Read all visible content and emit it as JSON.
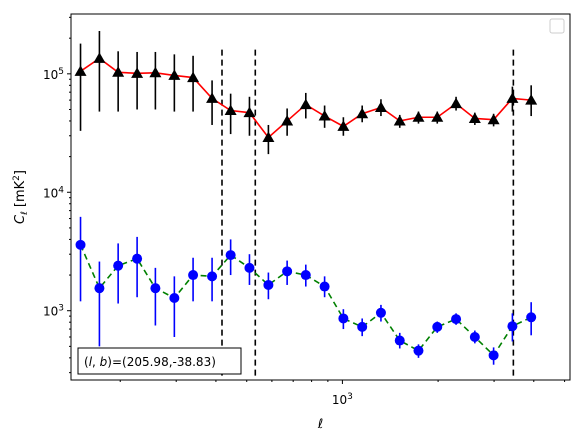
{
  "chart_data": {
    "type": "scatter",
    "xscale": "log",
    "yscale": "log",
    "xlim": [
      140,
      5200
    ],
    "ylim": [
      260,
      320000
    ],
    "xlabel": "ℓ",
    "ylabel": "C_ℓ  [mK²]",
    "x_ticks": [
      {
        "value": 1000,
        "base": "10",
        "exp": "3"
      }
    ],
    "y_ticks": [
      {
        "value": 1000,
        "base": "10",
        "exp": "3"
      },
      {
        "value": 10000,
        "base": "10",
        "exp": "4"
      },
      {
        "value": 100000,
        "base": "10",
        "exp": "5"
      }
    ],
    "vlines": [
      418,
      532,
      3450
    ],
    "annotation": {
      "text": "(l, b)=(205.98,-38.83)",
      "prefix": "(",
      "l": "l",
      "comma": ", ",
      "b": "b",
      "suffix": ")=(205.98,-38.83)",
      "position": "bottom-left"
    },
    "legend": {
      "position": "top-right",
      "entries": []
    },
    "grid": false,
    "series": [
      {
        "marker": "triangle",
        "line_style": "solid",
        "line_color": "#ff0000",
        "marker_color": "#000000",
        "errbar_color": "#000000",
        "points": [
          {
            "x": 150,
            "y": 105000,
            "lo": 33000,
            "hi": 180000
          },
          {
            "x": 172,
            "y": 135000,
            "lo": 48000,
            "hi": 230000
          },
          {
            "x": 197,
            "y": 103000,
            "lo": 48000,
            "hi": 155000
          },
          {
            "x": 226,
            "y": 101000,
            "lo": 50000,
            "hi": 153000
          },
          {
            "x": 258,
            "y": 102000,
            "lo": 50000,
            "hi": 153000
          },
          {
            "x": 296,
            "y": 97000,
            "lo": 48000,
            "hi": 146000
          },
          {
            "x": 339,
            "y": 93000,
            "lo": 48000,
            "hi": 142000
          },
          {
            "x": 389,
            "y": 62000,
            "lo": 37000,
            "hi": 88000
          },
          {
            "x": 445,
            "y": 49000,
            "lo": 31000,
            "hi": 68000
          },
          {
            "x": 510,
            "y": 47000,
            "lo": 30000,
            "hi": 64000
          },
          {
            "x": 585,
            "y": 29000,
            "lo": 21000,
            "hi": 37000
          },
          {
            "x": 670,
            "y": 40000,
            "lo": 30000,
            "hi": 51000
          },
          {
            "x": 767,
            "y": 55000,
            "lo": 42000,
            "hi": 69000
          },
          {
            "x": 879,
            "y": 44000,
            "lo": 35000,
            "hi": 54000
          },
          {
            "x": 1007,
            "y": 36000,
            "lo": 30000,
            "hi": 43000
          },
          {
            "x": 1154,
            "y": 46000,
            "lo": 39000,
            "hi": 54000
          },
          {
            "x": 1322,
            "y": 52000,
            "lo": 44000,
            "hi": 61000
          },
          {
            "x": 1515,
            "y": 40000,
            "lo": 35000,
            "hi": 45000
          },
          {
            "x": 1735,
            "y": 43000,
            "lo": 38000,
            "hi": 48000
          },
          {
            "x": 1988,
            "y": 43000,
            "lo": 38000,
            "hi": 48000
          },
          {
            "x": 2278,
            "y": 56000,
            "lo": 49000,
            "hi": 64000
          },
          {
            "x": 2610,
            "y": 42000,
            "lo": 37000,
            "hi": 47000
          },
          {
            "x": 2990,
            "y": 41000,
            "lo": 36000,
            "hi": 46000
          },
          {
            "x": 3426,
            "y": 62000,
            "lo": 48000,
            "hi": 78000
          },
          {
            "x": 3925,
            "y": 60000,
            "lo": 44000,
            "hi": 80000
          }
        ]
      },
      {
        "marker": "circle",
        "line_style": "dashed",
        "line_color": "#008000",
        "marker_color": "#0000ff",
        "errbar_color": "#0000ff",
        "points": [
          {
            "x": 150,
            "y": 3600,
            "lo": 1200,
            "hi": 6200
          },
          {
            "x": 172,
            "y": 1550,
            "lo": 500,
            "hi": 2600
          },
          {
            "x": 197,
            "y": 2400,
            "lo": 1150,
            "hi": 3700
          },
          {
            "x": 226,
            "y": 2750,
            "lo": 1300,
            "hi": 4200
          },
          {
            "x": 258,
            "y": 1550,
            "lo": 750,
            "hi": 2300
          },
          {
            "x": 296,
            "y": 1280,
            "lo": 600,
            "hi": 1950
          },
          {
            "x": 339,
            "y": 2000,
            "lo": 1200,
            "hi": 2800
          },
          {
            "x": 389,
            "y": 1950,
            "lo": 1200,
            "hi": 2800
          },
          {
            "x": 445,
            "y": 2950,
            "lo": 2000,
            "hi": 4000
          },
          {
            "x": 510,
            "y": 2300,
            "lo": 1650,
            "hi": 3000
          },
          {
            "x": 585,
            "y": 1650,
            "lo": 1250,
            "hi": 2100
          },
          {
            "x": 670,
            "y": 2150,
            "lo": 1650,
            "hi": 2650
          },
          {
            "x": 767,
            "y": 2000,
            "lo": 1600,
            "hi": 2450
          },
          {
            "x": 879,
            "y": 1600,
            "lo": 1300,
            "hi": 1950
          },
          {
            "x": 1007,
            "y": 860,
            "lo": 700,
            "hi": 1030
          },
          {
            "x": 1154,
            "y": 730,
            "lo": 610,
            "hi": 860
          },
          {
            "x": 1322,
            "y": 960,
            "lo": 810,
            "hi": 1120
          },
          {
            "x": 1515,
            "y": 560,
            "lo": 480,
            "hi": 650
          },
          {
            "x": 1735,
            "y": 460,
            "lo": 400,
            "hi": 520
          },
          {
            "x": 1988,
            "y": 730,
            "lo": 650,
            "hi": 810
          },
          {
            "x": 2278,
            "y": 850,
            "lo": 760,
            "hi": 950
          },
          {
            "x": 2610,
            "y": 600,
            "lo": 530,
            "hi": 680
          },
          {
            "x": 2990,
            "y": 420,
            "lo": 350,
            "hi": 490
          },
          {
            "x": 3426,
            "y": 740,
            "lo": 550,
            "hi": 950
          },
          {
            "x": 3925,
            "y": 880,
            "lo": 620,
            "hi": 1180
          }
        ]
      }
    ]
  }
}
